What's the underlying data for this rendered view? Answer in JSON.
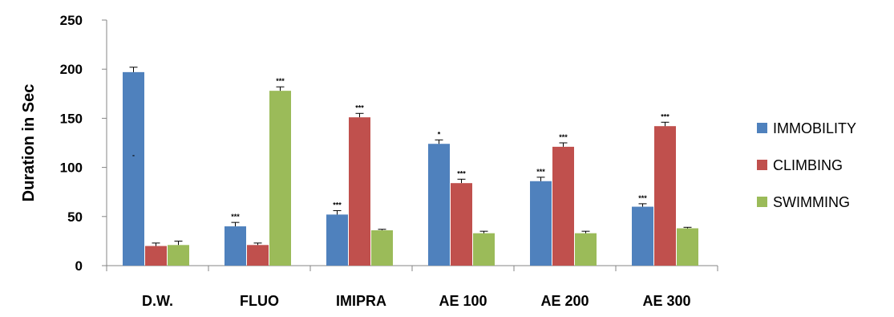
{
  "chart_data": {
    "type": "bar",
    "title": "",
    "xlabel": "",
    "ylabel": "Duration in Sec",
    "ylim": [
      0,
      250
    ],
    "yticks": [
      0,
      50,
      100,
      150,
      200,
      250
    ],
    "grid": false,
    "legend_position": "right",
    "categories": [
      "D.W.",
      "FLUO",
      "IMIPRA",
      "AE 100",
      "AE 200",
      "AE 300"
    ],
    "series": [
      {
        "name": "IMMOBILITY",
        "color": "#4F81BD",
        "values": [
          197,
          40,
          52,
          124,
          86,
          60
        ],
        "errors": [
          5,
          4,
          4,
          4,
          4,
          3
        ],
        "annotations": [
          "-",
          "***",
          "***",
          "*",
          "***",
          "***"
        ]
      },
      {
        "name": "CLIMBING",
        "color": "#C0504D",
        "values": [
          20,
          21,
          151,
          84,
          121,
          142
        ],
        "errors": [
          3,
          2,
          4,
          4,
          4,
          4
        ],
        "annotations": [
          "",
          "",
          "***",
          "***",
          "***",
          "***"
        ]
      },
      {
        "name": "SWIMMING",
        "color": "#9BBB59",
        "values": [
          21,
          178,
          36,
          33,
          33,
          38
        ],
        "errors": [
          4,
          4,
          1,
          2,
          2,
          1
        ],
        "annotations": [
          "",
          "***",
          "",
          "",
          "",
          ""
        ]
      }
    ]
  }
}
